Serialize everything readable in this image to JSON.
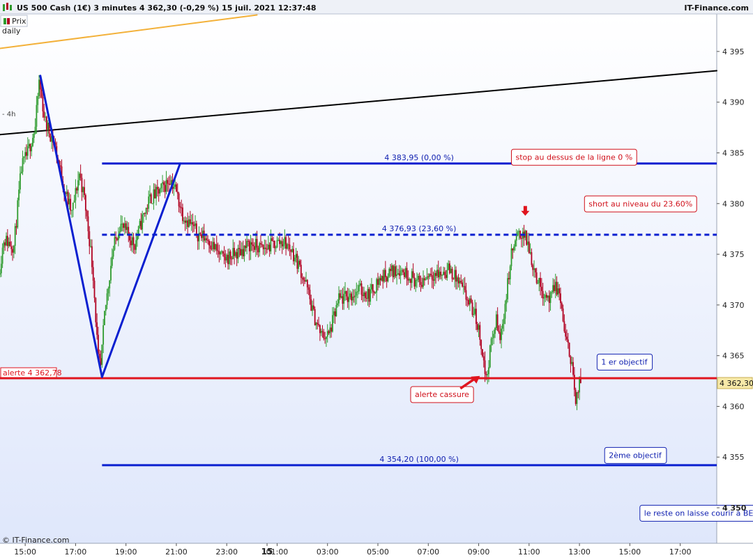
{
  "header": {
    "title": "US 500 Cash (1€) 3 minutes 4 362,30 (-0,29 %) 15 juil. 2021 12:37:48",
    "brand": "IT-Finance.com",
    "series_label": "Prix",
    "timeframe": "daily",
    "sub_timeframe": "- 4h"
  },
  "footer": {
    "copyright": "© IT-Finance.com"
  },
  "colors": {
    "up_candle": "#2e9b2e",
    "down_candle": "#b00020",
    "level_line": "#0a1fd0",
    "alert_line": "#e0141e",
    "trend_black": "#000000",
    "trend_orange": "#f3b13a"
  },
  "chart_data": {
    "type": "candlestick",
    "ylim": [
      4346.5,
      4398.7
    ],
    "y_ticks": [
      4350,
      4355,
      4360,
      4365,
      4370,
      4375,
      4380,
      4385,
      4390,
      4395
    ],
    "y_tick_labels": [
      "4 350",
      "4 355",
      "4 360",
      "4 365",
      "4 370",
      "4 375",
      "4 380",
      "4 385",
      "4 390",
      "4 395"
    ],
    "x_tick_labels": [
      "15:00",
      "17:00",
      "19:00",
      "21:00",
      "23:00",
      "15",
      "01:00",
      "03:00",
      "05:00",
      "07:00",
      "09:00",
      "11:00",
      "13:00",
      "15:00",
      "17:00"
    ],
    "x_tick_hours": [
      15,
      17,
      19,
      21,
      23,
      24.6,
      25,
      27,
      29,
      31,
      33,
      35,
      37,
      39,
      41
    ],
    "xlim_hours": [
      14.0,
      42.45
    ],
    "price_anchors": [
      [
        14.0,
        4373.0
      ],
      [
        14.2,
        4376.5
      ],
      [
        14.6,
        4375.8
      ],
      [
        14.9,
        4383.5
      ],
      [
        15.15,
        4385.0
      ],
      [
        15.45,
        4387.5
      ],
      [
        15.6,
        4392.0
      ],
      [
        15.85,
        4388.0
      ],
      [
        16.2,
        4386.0
      ],
      [
        16.6,
        4381.5
      ],
      [
        16.9,
        4379.0
      ],
      [
        17.2,
        4383.0
      ],
      [
        17.4,
        4380.5
      ],
      [
        17.6,
        4376.5
      ],
      [
        17.75,
        4373.0
      ],
      [
        17.95,
        4364.5
      ],
      [
        18.05,
        4363.8
      ],
      [
        18.2,
        4369.0
      ],
      [
        18.5,
        4375.0
      ],
      [
        18.8,
        4378.0
      ],
      [
        19.1,
        4377.0
      ],
      [
        19.4,
        4376.0
      ],
      [
        19.7,
        4378.5
      ],
      [
        20.0,
        4380.5
      ],
      [
        20.3,
        4381.0
      ],
      [
        20.6,
        4381.8
      ],
      [
        20.8,
        4382.5
      ],
      [
        21.0,
        4381.5
      ],
      [
        21.3,
        4379.0
      ],
      [
        21.6,
        4378.0
      ],
      [
        21.9,
        4377.0
      ],
      [
        22.3,
        4376.5
      ],
      [
        22.6,
        4375.5
      ],
      [
        22.9,
        4374.5
      ],
      [
        23.4,
        4375.0
      ],
      [
        24.0,
        4376.0
      ],
      [
        24.5,
        4375.5
      ],
      [
        24.9,
        4376.0
      ],
      [
        25.3,
        4376.3
      ],
      [
        25.6,
        4375.5
      ],
      [
        25.9,
        4374.0
      ],
      [
        26.2,
        4372.0
      ],
      [
        26.5,
        4369.0
      ],
      [
        26.8,
        4367.0
      ],
      [
        27.1,
        4367.0
      ],
      [
        27.5,
        4370.5
      ],
      [
        27.9,
        4370.8
      ],
      [
        28.3,
        4371.5
      ],
      [
        28.7,
        4371.0
      ],
      [
        29.1,
        4372.5
      ],
      [
        29.5,
        4373.2
      ],
      [
        29.9,
        4373.5
      ],
      [
        30.3,
        4373.0
      ],
      [
        30.7,
        4372.0
      ],
      [
        31.1,
        4373.2
      ],
      [
        31.5,
        4373.0
      ],
      [
        31.9,
        4373.5
      ],
      [
        32.3,
        4372.0
      ],
      [
        32.6,
        4370.5
      ],
      [
        32.9,
        4369.0
      ],
      [
        33.1,
        4367.0
      ],
      [
        33.35,
        4362.5
      ],
      [
        33.5,
        4365.5
      ],
      [
        33.75,
        4368.5
      ],
      [
        33.9,
        4366.5
      ],
      [
        34.15,
        4371.0
      ],
      [
        34.35,
        4375.0
      ],
      [
        34.55,
        4376.5
      ],
      [
        34.8,
        4377.2
      ],
      [
        35.0,
        4376.0
      ],
      [
        35.2,
        4374.0
      ],
      [
        35.45,
        4372.0
      ],
      [
        35.7,
        4371.0
      ],
      [
        35.9,
        4370.5
      ],
      [
        36.1,
        4372.0
      ],
      [
        36.3,
        4370.5
      ],
      [
        36.5,
        4366.5
      ],
      [
        36.75,
        4364.5
      ],
      [
        36.9,
        4360.0
      ],
      [
        37.05,
        4362.3
      ]
    ],
    "last_price": 4362.3,
    "levels": [
      {
        "name": "fib-0",
        "value": 4383.95,
        "label": "4 383,95 (0,00 %)",
        "style": "solid",
        "start_hour": 18.05
      },
      {
        "name": "fib-23-6",
        "value": 4376.93,
        "label": "4 376,93 (23,60 %)",
        "style": "dashed",
        "start_hour": 18.05
      },
      {
        "name": "fib-100",
        "value": 4354.2,
        "label": "4 354,20 (100,00 %)",
        "style": "solid",
        "start_hour": 18.05
      },
      {
        "name": "alert",
        "value": 4362.78,
        "label": "alerte 4 362,78",
        "style": "solid",
        "start_hour": 14.0
      }
    ],
    "last_price_label": "4 362,30",
    "trendlines": [
      {
        "name": "zigzag-down",
        "points": [
          [
            15.6,
            4392.6
          ],
          [
            18.05,
            4362.9
          ]
        ],
        "color": "#0a1fd0"
      },
      {
        "name": "zigzag-up",
        "points": [
          [
            18.05,
            4362.9
          ],
          [
            21.15,
            4383.95
          ]
        ],
        "color": "#0a1fd0"
      },
      {
        "name": "black-resistance",
        "points": [
          [
            14.0,
            4386.8
          ],
          [
            42.45,
            4393.1
          ]
        ],
        "color": "#000000"
      },
      {
        "name": "orange-trend",
        "points": [
          [
            14.0,
            4395.3
          ],
          [
            24.2,
            4398.6
          ]
        ],
        "color": "#f3b13a"
      }
    ],
    "annotations": [
      {
        "name": "stop-note",
        "text": "stop au dessus de la ligne 0 %",
        "hour": 34.3,
        "price": 4384.6,
        "color": "#d0101a"
      },
      {
        "name": "short-note",
        "text": "short au niveau du 23.60%",
        "hour": 37.2,
        "price": 4380.0,
        "color": "#d0101a"
      },
      {
        "name": "alert-break-note",
        "text": "alerte cassure",
        "hour": 30.3,
        "price": 4361.2,
        "color": "#d0101a"
      },
      {
        "name": "target1-note",
        "text": "1 er objectif",
        "hour": 37.7,
        "price": 4364.4,
        "color": "#1020b0"
      },
      {
        "name": "target2-note",
        "text": "2ème objectif",
        "hour": 38.0,
        "price": 4355.2,
        "color": "#1020b0"
      },
      {
        "name": "rest-note",
        "text": "le reste on laisse courir à BE",
        "hour": 39.4,
        "price": 4349.5,
        "color": "#1020b0"
      }
    ]
  }
}
